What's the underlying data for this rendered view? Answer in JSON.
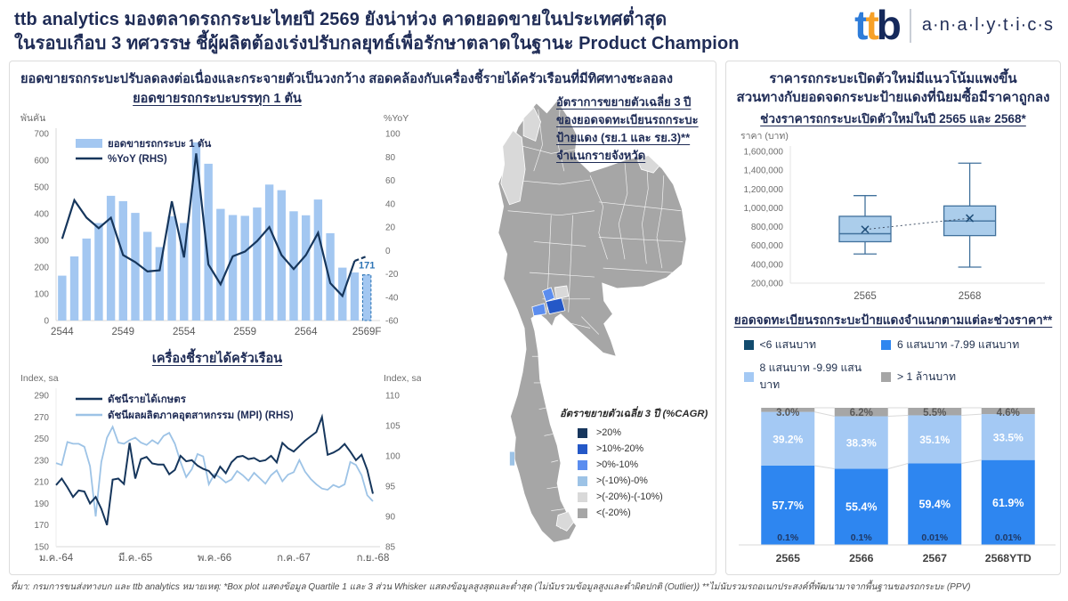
{
  "header": {
    "title_line1": "ttb analytics มองตลาดรถกระบะไทยปี 2569 ยังน่าห่วง คาดยอดขายในประเทศต่ำสุด",
    "title_line2": "ในรอบเกือบ 3 ทศวรรษ ชี้ผู้ผลิตต้องเร่งปรับกลยุทธ์เพื่อรักษาตลาดในฐานะ Product Champion",
    "logo": {
      "t1": "t",
      "t2": "t",
      "b": "b",
      "analytics": "a·n·a·l·y·t·i·c·s"
    }
  },
  "left_panel": {
    "heading": "ยอดขายรถกระบะปรับลดลงต่อเนื่องและกระจายตัวเป็นวงกว้าง สอดคล้องกับเครื่องชี้รายได้ครัวเรือนที่มีทิศทางชะลอลง"
  },
  "footer": "ที่มา: กรมการขนส่งทางบก และ ttb analytics  หมายเหตุ: *Box plot แสดงข้อมูล Quartile 1 และ 3 ส่วน Whisker แสดงข้อมูลสูงสุดและต่ำสุด (ไม่นับรวมข้อมูลสูงและต่ำผิดปกติ (Outlier)) **ไม่นับรวมรถอเนกประสงค์ที่พัฒนามาจากพื้นฐานของรถกระบะ (PPV)",
  "chart_data": [
    {
      "id": "pickup_sales",
      "type": "bar",
      "title": "ยอดขายรถกระบะบรรทุก 1 ตัน",
      "y_left_label": "พันคัน",
      "y_right_label": "%YoY",
      "ylim_left": [
        0,
        700
      ],
      "y_left_step": 100,
      "ylim_right": [
        -60,
        100
      ],
      "y_right_step": 20,
      "categories": [
        "2544",
        "2545",
        "2546",
        "2547",
        "2548",
        "2549",
        "2550",
        "2551",
        "2552",
        "2553",
        "2554",
        "2555",
        "2556",
        "2557",
        "2558",
        "2559",
        "2560",
        "2561",
        "2562",
        "2563",
        "2564",
        "2565",
        "2566",
        "2567",
        "2568",
        "2569F"
      ],
      "x_tick_indices": [
        0,
        5,
        10,
        15,
        20,
        25
      ],
      "series": [
        {
          "name": "ยอดขายรถกระบะ 1 ตัน",
          "kind": "bar",
          "axis": "left",
          "color": "#A3C7F1",
          "values": [
            168,
            240,
            307,
            365,
            467,
            447,
            403,
            332,
            275,
            390,
            365,
            667,
            587,
            418,
            395,
            392,
            423,
            509,
            488,
            409,
            394,
            453,
            327,
            198,
            180,
            171
          ]
        },
        {
          "name": "%YoY (RHS)",
          "kind": "line",
          "axis": "right",
          "color": "#16365C",
          "values": [
            10,
            43,
            28,
            19,
            28,
            -4,
            -10,
            -18,
            -17,
            42,
            -6,
            83,
            -12,
            -29,
            -5,
            -1,
            8,
            20,
            -4,
            -16,
            -4,
            15,
            -28,
            -39,
            -9,
            -5
          ]
        }
      ],
      "forecast_index": 25,
      "forecast_label": "171",
      "forecast_color": "#2E75B6"
    },
    {
      "id": "household_income",
      "type": "line",
      "title": "เครื่องชี้รายได้ครัวเรือน",
      "y_left_label": "Index, sa",
      "y_right_label": "Index, sa",
      "ylim_left": [
        150,
        290
      ],
      "y_left_step": 20,
      "ylim_right": [
        85,
        110
      ],
      "y_right_step": 5,
      "x_ticks": [
        "ม.ค.-64",
        "มี.ค.-65",
        "พ.ค.-66",
        "ก.ค.-67",
        "ก.ย.-68"
      ],
      "x_tick_indices": [
        0,
        14,
        28,
        42,
        56
      ],
      "series": [
        {
          "name": "ดัชนีรายได้เกษตร",
          "axis": "left",
          "color": "#16365C",
          "values": [
            207,
            213,
            205,
            196,
            202,
            201,
            190,
            196,
            185,
            170,
            212,
            213,
            208,
            246,
            213,
            231,
            233,
            227,
            226,
            226,
            217,
            221,
            234,
            229,
            230,
            225,
            222,
            220,
            214,
            224,
            218,
            228,
            233,
            234,
            231,
            232,
            229,
            230,
            234,
            228,
            246,
            241,
            238,
            243,
            248,
            252,
            256,
            270,
            235,
            237,
            240,
            245,
            238,
            230,
            235,
            221,
            199
          ]
        },
        {
          "name": "ดัชนีผลผลิตภาคอุตสาหกรรม (MPI) (RHS)",
          "axis": "right",
          "color": "#9DC3E6",
          "values": [
            98.8,
            98.5,
            102.3,
            102,
            102,
            101.5,
            98.3,
            90,
            99,
            103,
            104.8,
            102.2,
            102,
            102.6,
            103,
            102.2,
            101.8,
            102.6,
            102,
            103.3,
            103.8,
            102,
            99,
            96.5,
            97.8,
            100.3,
            99.9,
            95.3,
            97,
            96.4,
            95.6,
            96.1,
            97.5,
            96.8,
            95.9,
            97.2,
            96.3,
            95.4,
            96.8,
            97.6,
            95.8,
            96.9,
            97.3,
            99.3,
            97.4,
            96.2,
            95.3,
            94.6,
            94.4,
            95.2,
            94.8,
            95.3,
            99,
            98.5,
            96.8,
            93.5,
            92.5
          ]
        }
      ]
    },
    {
      "id": "registration_cagr_map",
      "type": "choropleth",
      "annotation_lines": [
        "อัตราการขยายตัวเฉลี่ย 3 ปี",
        "ของยอดจดทะเบียนรถกระบะ",
        "ป้ายแดง (รย.1 และ รย.3)**",
        "จำแนกรายจังหวัด"
      ],
      "legend_title": "อัตราขยายตัวเฉลี่ย 3 ปี (%CAGR)",
      "legend": [
        {
          "label": ">20%",
          "color": "#17365D"
        },
        {
          "label": ">10%-20%",
          "color": "#2458C7"
        },
        {
          "label": ">0%-10%",
          "color": "#5B8DEF"
        },
        {
          "label": ">(-10%)-0%",
          "color": "#9DC3E6"
        },
        {
          "label": ">(-20%)-(-10%)",
          "color": "#D9D9D9"
        },
        {
          "label": "<(-20%)",
          "color": "#A6A6A6"
        }
      ],
      "regions": [
        {
          "name": "rest-of-country",
          "class": "<(-20%)"
        },
        {
          "name": "mae-hong-son-strip",
          "class": ">(-20%)-(-10%)"
        },
        {
          "name": "north-top-patch",
          "class": ">(-20%)-(-10%)"
        },
        {
          "name": "bueng-kan-patch",
          "class": ">(-20%)-(-10%)"
        },
        {
          "name": "ayutthaya-patch",
          "class": ">(-20%)-(-10%)"
        },
        {
          "name": "deep-south-patch",
          "class": ">(-20%)-(-10%)"
        },
        {
          "name": "pathum-thani",
          "class": ">0%-10%"
        },
        {
          "name": "samut-sakhon",
          "class": ">0%-10%"
        },
        {
          "name": "bangkok",
          "class": ">10%-20%"
        },
        {
          "name": "phuket",
          "class": ">(-10%)-0%"
        }
      ]
    },
    {
      "id": "launch_price_box",
      "type": "box",
      "title_lines": [
        "ราคารถกระบะเปิดตัวใหม่มีแนวโน้มแพงขึ้น",
        "สวนทางกับยอดจดกระบะป้ายแดงที่นิยมซื้อมีราคาถูกลง"
      ],
      "subtitle": "ช่วงราคารถกระบะเปิดตัวใหม่ในปี 2565 และ 2568*",
      "y_label": "ราคา (บาท)",
      "ylim": [
        200000,
        1600000
      ],
      "y_step": 200000,
      "categories": [
        "2565",
        "2568"
      ],
      "boxes": [
        {
          "category": "2565",
          "whisker_low": 510000,
          "q1": 640000,
          "median": 725000,
          "q3": 910000,
          "whisker_high": 1130000,
          "mean": 770000
        },
        {
          "category": "2568",
          "whisker_low": 370000,
          "q1": 705000,
          "median": 860000,
          "q3": 1020000,
          "whisker_high": 1475000,
          "mean": 890000
        }
      ],
      "box_fill": "#ABCDEB",
      "box_stroke": "#41719C",
      "mean_color": "#1F4E79",
      "connector_color": "#44546A"
    },
    {
      "id": "registration_price_mix",
      "type": "bar",
      "stacked": true,
      "title": "ยอดจดทะเบียนรถกระบะป้ายแดงจำแนกตามแต่ละช่วงราคา**",
      "categories": [
        "2565",
        "2566",
        "2567",
        "2568YTD"
      ],
      "unit": "%",
      "series": [
        {
          "name": "<6 แสนบาท",
          "color": "#124B6E",
          "label_color": "#1F3864",
          "values": [
            0.1,
            0.1,
            0.01,
            0.01
          ],
          "labels": [
            "0.1%",
            "0.1%",
            "0.01%",
            "0.01%"
          ]
        },
        {
          "name": "6 แสนบาท -7.99 แสนบาท",
          "color": "#2E86F0",
          "label_color": "#FFFFFF",
          "values": [
            57.7,
            55.4,
            59.4,
            61.9
          ],
          "labels": [
            "57.7%",
            "55.4%",
            "59.4%",
            "61.9%"
          ]
        },
        {
          "name": "8 แสนบาท -9.99 แสนบาท",
          "color": "#A4C9F4",
          "label_color": "#FFFFFF",
          "values": [
            39.2,
            38.3,
            35.1,
            33.5
          ],
          "labels": [
            "39.2%",
            "38.3%",
            "35.1%",
            "33.5%"
          ]
        },
        {
          "name": "> 1 ล้านบาท",
          "color": "#A6A6A6",
          "label_color": "#595959",
          "values": [
            3.0,
            6.2,
            5.5,
            4.6
          ],
          "labels": [
            "3.0%",
            "6.2%",
            "5.5%",
            "4.6%"
          ]
        }
      ]
    }
  ]
}
